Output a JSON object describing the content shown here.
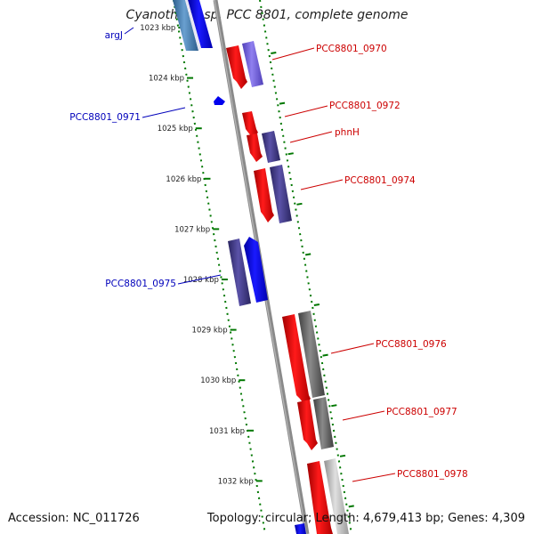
{
  "title": "Cyanothece sp. PCC 8801, complete genome",
  "footer": {
    "accession": "Accession: NC_011726",
    "stats": "Topology: circular; Length: 4,679,413 bp; Genes: 4,309"
  },
  "colors": {
    "forward_label": "#cc0000",
    "reverse_label": "#0000bb",
    "backbone": "#8a8a8a",
    "ticks": "#007700"
  },
  "ticks": [
    "1023 kbp",
    "1024 kbp",
    "1025 kbp",
    "1026 kbp",
    "1027 kbp",
    "1028 kbp",
    "1029 kbp",
    "1030 kbp",
    "1031 kbp",
    "1032 kbp"
  ],
  "labels": [
    {
      "text": "argJ",
      "strand": "reverse"
    },
    {
      "text": "PCC8801_0970",
      "strand": "forward"
    },
    {
      "text": "PCC8801_0971",
      "strand": "reverse"
    },
    {
      "text": "PCC8801_0972",
      "strand": "forward"
    },
    {
      "text": "phnH",
      "strand": "forward"
    },
    {
      "text": "PCC8801_0974",
      "strand": "forward"
    },
    {
      "text": "PCC8801_0975",
      "strand": "reverse"
    },
    {
      "text": "PCC8801_0976",
      "strand": "forward"
    },
    {
      "text": "PCC8801_0977",
      "strand": "forward"
    },
    {
      "text": "PCC8801_0978",
      "strand": "forward"
    }
  ]
}
